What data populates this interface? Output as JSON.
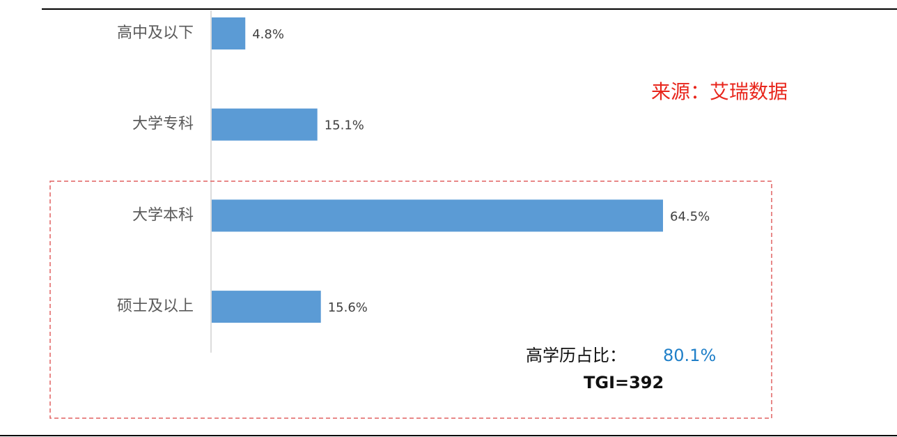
{
  "chart_data": {
    "type": "barh",
    "categories": [
      "高中及以下",
      "大学专科",
      "大学本科",
      "硕士及以上"
    ],
    "values": [
      4.8,
      15.1,
      64.5,
      15.6
    ],
    "value_labels": [
      "4.8%",
      "15.1%",
      "64.5%",
      "15.6%"
    ],
    "color": "#5b9bd5",
    "annotations": {
      "source": "来源：艾瑞数据",
      "share_label": "高学历占比：",
      "share_value": "80.1%",
      "tgi": "TGI=392"
    }
  }
}
